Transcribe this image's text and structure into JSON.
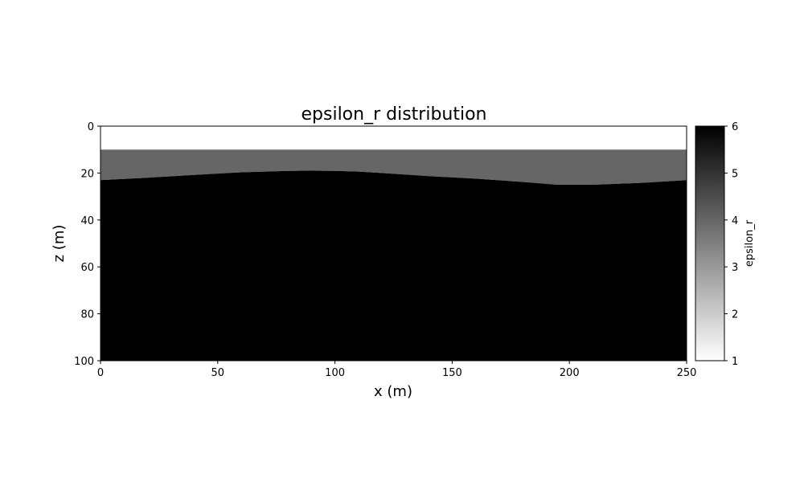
{
  "chart_data": {
    "type": "heatmap",
    "title": "epsilon_r distribution",
    "xlabel": "x (m)",
    "ylabel": "z (m)",
    "xlim": [
      0,
      250
    ],
    "ylim": [
      100,
      0
    ],
    "y_inverted": true,
    "xticks": [
      0,
      50,
      100,
      150,
      200,
      250
    ],
    "yticks": [
      0,
      20,
      40,
      60,
      80,
      100
    ],
    "grid": false,
    "colormap": "gray_r",
    "colorbar": {
      "label": "epsilon_r",
      "range": [
        1,
        6
      ],
      "ticks": [
        1,
        2,
        3,
        4,
        5,
        6
      ]
    },
    "layers": [
      {
        "epsilon_r": 1,
        "color": "#ffffff",
        "top_depth": 0,
        "bottom": "flat",
        "bottom_depth": 10
      },
      {
        "epsilon_r": 3.9,
        "color": "#666666",
        "top_depth": 10,
        "bottom": "interface"
      },
      {
        "epsilon_r": 6,
        "color": "#000000",
        "top": "interface",
        "bottom_depth": 100
      }
    ],
    "interface": {
      "x": [
        0,
        20,
        40,
        60,
        80,
        90,
        100,
        110,
        120,
        140,
        160,
        180,
        195,
        210,
        230,
        250
      ],
      "z": [
        23,
        22,
        20.8,
        19.7,
        19.1,
        19,
        19.1,
        19.4,
        20,
        21.3,
        22.4,
        23.8,
        25,
        25,
        24.2,
        23
      ]
    }
  }
}
